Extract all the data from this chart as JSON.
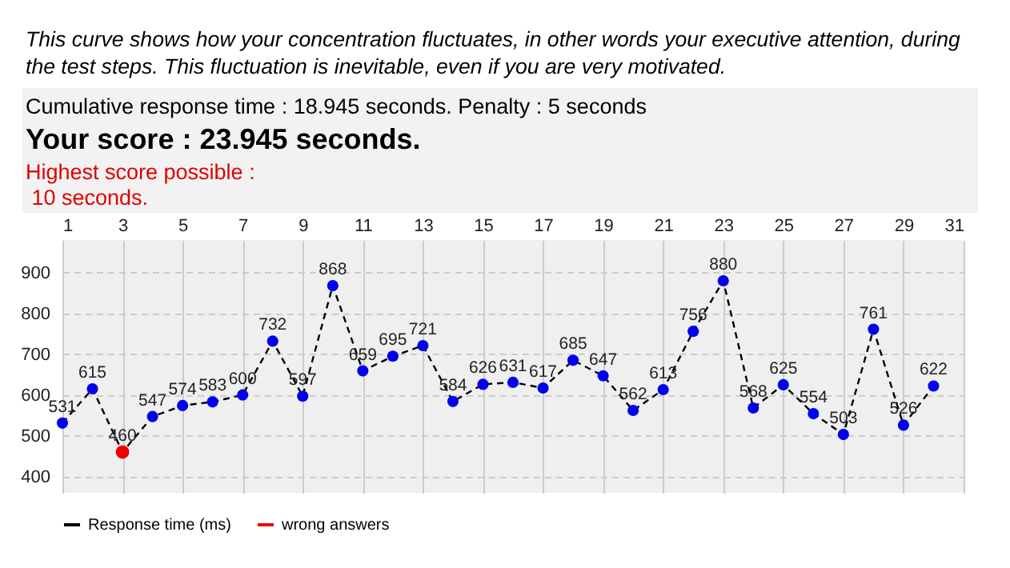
{
  "chart_data": {
    "type": "line",
    "title": "This curve shows how your concentration fluctuates, in other words your executive attention, during the test steps. This fluctuation is inevitable, even if you are very motivated.",
    "subtitle": "Cumulative response time : 18.945 seconds. Penalty : 5 seconds",
    "annotations": [
      "Your score : 23.945 seconds.",
      "Highest score possible :\n 10 seconds."
    ],
    "x": [
      1,
      2,
      3,
      4,
      5,
      6,
      7,
      8,
      9,
      10,
      11,
      12,
      13,
      14,
      15,
      16,
      17,
      18,
      19,
      20,
      21,
      22,
      23,
      24,
      25,
      26,
      27,
      28,
      29,
      30
    ],
    "series": [
      {
        "name": "Response time (ms)",
        "color": "#000000",
        "line_style": "dashed",
        "marker": "circle",
        "colors": [
          "#0000ee",
          "#0000ee",
          "#ee0000",
          "#0000ee",
          "#0000ee",
          "#0000ee",
          "#0000ee",
          "#0000ee",
          "#0000ee",
          "#0000ee",
          "#0000ee",
          "#0000ee",
          "#0000ee",
          "#0000ee",
          "#0000ee",
          "#0000ee",
          "#0000ee",
          "#0000ee",
          "#0000ee",
          "#0000ee",
          "#0000ee",
          "#0000ee",
          "#0000ee",
          "#0000ee",
          "#0000ee",
          "#0000ee",
          "#0000ee",
          "#0000ee",
          "#0000ee",
          "#0000ee"
        ],
        "values": [
          531,
          615,
          460,
          547,
          574,
          583,
          600,
          732,
          597,
          868,
          659,
          695,
          721,
          584,
          626,
          631,
          617,
          685,
          647,
          562,
          613,
          756,
          880,
          568,
          625,
          554,
          503,
          761,
          526,
          622
        ],
        "value_labels": [
          "531",
          "615",
          "460",
          "547",
          "574",
          "583",
          "600",
          "732",
          "597",
          "868",
          "659",
          "695",
          "721",
          "584",
          "626",
          "631",
          "617",
          "685",
          "647",
          "562",
          "613",
          "756",
          "880",
          "568",
          "625",
          "554",
          "503",
          "761",
          "526",
          "622"
        ]
      },
      {
        "name": "wrong answers",
        "type": "scatter",
        "color": "#ee0000",
        "marker": "circle",
        "values": [
          null,
          null,
          460,
          null,
          null,
          null,
          null,
          null,
          null,
          null,
          null,
          null,
          null,
          null,
          null,
          null,
          null,
          null,
          null,
          null,
          null,
          null,
          null,
          null,
          null,
          null,
          null,
          null,
          null,
          null
        ]
      }
    ],
    "xlim": [
      1,
      31
    ],
    "xticks": [
      1,
      3,
      5,
      7,
      9,
      11,
      13,
      15,
      17,
      19,
      21,
      23,
      25,
      27,
      29,
      31
    ],
    "ylim": [
      360,
      980
    ],
    "yticks": [
      400,
      500,
      600,
      700,
      800,
      900
    ],
    "grid": true,
    "legend": "bottom left"
  }
}
